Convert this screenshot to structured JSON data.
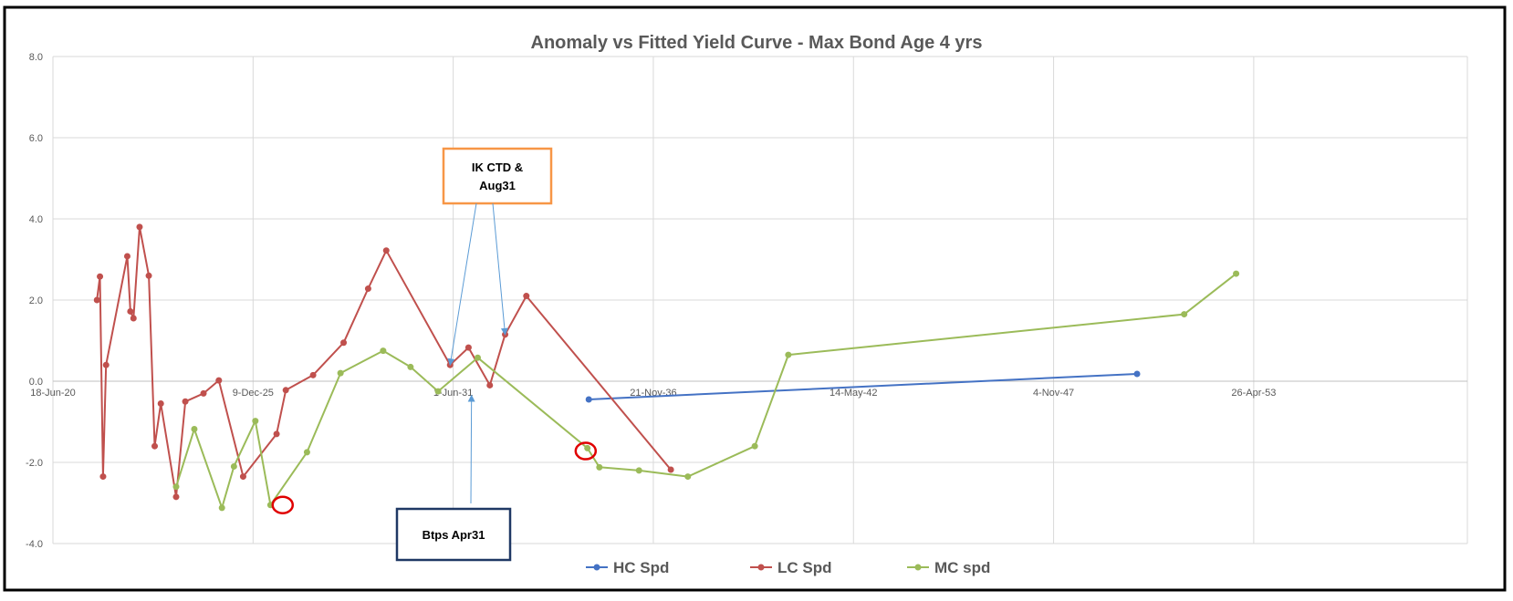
{
  "chart_data": {
    "type": "line",
    "title": "Anomaly vs Fitted Yield Curve - Max Bond Age 4 yrs",
    "xlabel": "",
    "ylabel": "",
    "x_axis": {
      "type": "date",
      "tick_labels": [
        "18-Jun-20",
        "9-Dec-25",
        "1-Jun-31",
        "21-Nov-36",
        "14-May-42",
        "4-Nov-47",
        "26-Apr-53"
      ],
      "tick_values": [
        "2020-06-18",
        "2025-12-09",
        "2031-06-01",
        "2036-11-21",
        "2042-05-14",
        "2047-11-04",
        "2053-04-26"
      ],
      "range": [
        "2020-06-18",
        "2059-03-01"
      ]
    },
    "y_axis": {
      "tick_labels": [
        "8.0",
        "6.0",
        "4.0",
        "2.0",
        "0.0",
        "-2.0",
        "-4.0"
      ],
      "ylim": [
        -4,
        8
      ]
    },
    "grid": true,
    "legend_position": "bottom",
    "series": [
      {
        "name": "HC Spd",
        "color": "#4472c4",
        "points": [
          {
            "x": "2035-02-15",
            "y": -0.45
          },
          {
            "x": "2050-02-15",
            "y": 0.18
          }
        ]
      },
      {
        "name": "LC Spd",
        "color": "#c0504d",
        "points": [
          {
            "x": "2021-09-01",
            "y": 2.0
          },
          {
            "x": "2021-10-01",
            "y": 2.58
          },
          {
            "x": "2021-11-01",
            "y": -2.35
          },
          {
            "x": "2021-12-01",
            "y": 0.4
          },
          {
            "x": "2022-07-01",
            "y": 3.08
          },
          {
            "x": "2022-08-01",
            "y": 1.72
          },
          {
            "x": "2022-09-01",
            "y": 1.55
          },
          {
            "x": "2022-11-01",
            "y": 3.8
          },
          {
            "x": "2023-02-01",
            "y": 2.6
          },
          {
            "x": "2023-04-01",
            "y": -1.6
          },
          {
            "x": "2023-06-01",
            "y": -0.55
          },
          {
            "x": "2023-11-01",
            "y": -2.85
          },
          {
            "x": "2024-02-01",
            "y": -0.5
          },
          {
            "x": "2024-08-01",
            "y": -0.3
          },
          {
            "x": "2025-01-01",
            "y": 0.02
          },
          {
            "x": "2025-09-01",
            "y": -2.35
          },
          {
            "x": "2026-08-01",
            "y": -1.3
          },
          {
            "x": "2026-11-01",
            "y": -0.22
          },
          {
            "x": "2027-08-01",
            "y": 0.15
          },
          {
            "x": "2028-06-01",
            "y": 0.95
          },
          {
            "x": "2029-02-01",
            "y": 2.28
          },
          {
            "x": "2029-08-01",
            "y": 3.22
          },
          {
            "x": "2031-05-01",
            "y": 0.4
          },
          {
            "x": "2031-11-01",
            "y": 0.83
          },
          {
            "x": "2032-06-01",
            "y": -0.1
          },
          {
            "x": "2032-11-01",
            "y": 1.15
          },
          {
            "x": "2033-06-01",
            "y": 2.1
          },
          {
            "x": "2037-05-15",
            "y": -2.18
          }
        ]
      },
      {
        "name": "MC spd",
        "color": "#9bbb59",
        "points": [
          {
            "x": "2023-11-01",
            "y": -2.6
          },
          {
            "x": "2024-05-01",
            "y": -1.18
          },
          {
            "x": "2025-02-01",
            "y": -3.12
          },
          {
            "x": "2025-06-01",
            "y": -2.1
          },
          {
            "x": "2026-01-01",
            "y": -0.98
          },
          {
            "x": "2026-06-01",
            "y": -3.05
          },
          {
            "x": "2027-06-01",
            "y": -1.75
          },
          {
            "x": "2028-05-01",
            "y": 0.2
          },
          {
            "x": "2029-07-01",
            "y": 0.75
          },
          {
            "x": "2030-04-01",
            "y": 0.35
          },
          {
            "x": "2031-01-01",
            "y": -0.25
          },
          {
            "x": "2032-02-01",
            "y": 0.58
          },
          {
            "x": "2035-02-01",
            "y": -1.65
          },
          {
            "x": "2035-06-01",
            "y": -2.12
          },
          {
            "x": "2036-07-01",
            "y": -2.2
          },
          {
            "x": "2037-11-01",
            "y": -2.35
          },
          {
            "x": "2039-09-01",
            "y": -1.6
          },
          {
            "x": "2040-08-01",
            "y": 0.65
          },
          {
            "x": "2051-06-01",
            "y": 1.65
          },
          {
            "x": "2052-11-01",
            "y": 2.65
          }
        ]
      }
    ],
    "annotations": [
      {
        "id": "ik-ctd",
        "lines": [
          "IK CTD &",
          "Aug31"
        ],
        "border_color": "#f79646",
        "arrow_targets": [
          {
            "x": "2031-05-01",
            "y": 0.4
          },
          {
            "x": "2032-11-01",
            "y": 1.15
          }
        ]
      },
      {
        "id": "btps",
        "lines": [
          "Btps Apr31"
        ],
        "border_color": "#1f3864",
        "arrow_targets": [
          {
            "x": "2031-12-01",
            "y": -0.35
          }
        ]
      }
    ],
    "circle_markers": [
      {
        "x": "2026-10-01",
        "y": -3.05,
        "color": "#e00000"
      },
      {
        "x": "2035-01-15",
        "y": -1.72,
        "color": "#e00000"
      }
    ]
  }
}
